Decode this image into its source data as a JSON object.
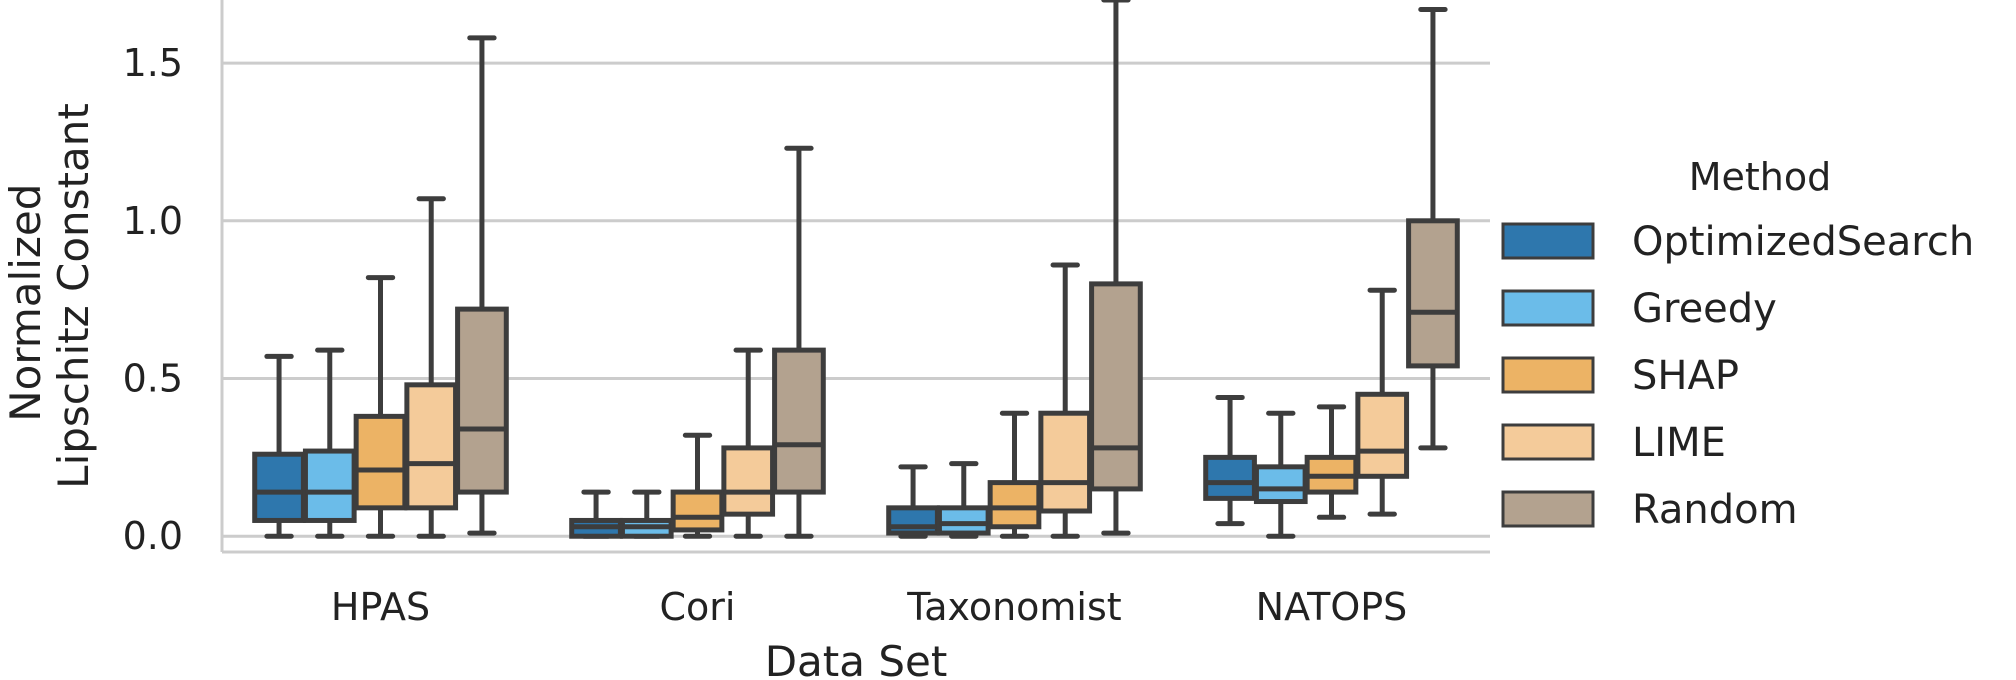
{
  "chart_data": {
    "type": "boxplot",
    "xlabel": "Data Set",
    "ylabel": [
      "Normalized",
      "Lipschitz Constant"
    ],
    "ylim": [
      -0.05,
      1.7
    ],
    "yticks": [
      0.0,
      0.5,
      1.0,
      1.5
    ],
    "ytick_labels": [
      "0.0",
      "0.5",
      "1.0",
      "1.5"
    ],
    "grid": "horizontal",
    "categories": [
      "HPAS",
      "Cori",
      "Taxonomist",
      "NATOPS"
    ],
    "legend": {
      "title": "Method",
      "placement": "right"
    },
    "series": [
      {
        "name": "OptimizedSearch",
        "color": "#2e77ad",
        "boxes": [
          {
            "whislo": 0.0,
            "q1": 0.05,
            "med": 0.14,
            "q3": 0.26,
            "whishi": 0.57
          },
          {
            "whislo": 0.0,
            "q1": 0.0,
            "med": 0.03,
            "q3": 0.05,
            "whishi": 0.14
          },
          {
            "whislo": 0.0,
            "q1": 0.01,
            "med": 0.03,
            "q3": 0.09,
            "whishi": 0.22
          },
          {
            "whislo": 0.04,
            "q1": 0.12,
            "med": 0.17,
            "q3": 0.25,
            "whishi": 0.44
          }
        ]
      },
      {
        "name": "Greedy",
        "color": "#6bbce9",
        "boxes": [
          {
            "whislo": 0.0,
            "q1": 0.05,
            "med": 0.14,
            "q3": 0.27,
            "whishi": 0.59
          },
          {
            "whislo": 0.0,
            "q1": 0.0,
            "med": 0.03,
            "q3": 0.05,
            "whishi": 0.14
          },
          {
            "whislo": 0.0,
            "q1": 0.01,
            "med": 0.04,
            "q3": 0.09,
            "whishi": 0.23
          },
          {
            "whislo": 0.0,
            "q1": 0.11,
            "med": 0.15,
            "q3": 0.22,
            "whishi": 0.39
          }
        ]
      },
      {
        "name": "SHAP",
        "color": "#ecb365",
        "boxes": [
          {
            "whislo": 0.0,
            "q1": 0.09,
            "med": 0.21,
            "q3": 0.38,
            "whishi": 0.82
          },
          {
            "whislo": 0.0,
            "q1": 0.02,
            "med": 0.06,
            "q3": 0.14,
            "whishi": 0.32
          },
          {
            "whislo": 0.0,
            "q1": 0.03,
            "med": 0.09,
            "q3": 0.17,
            "whishi": 0.39
          },
          {
            "whislo": 0.06,
            "q1": 0.14,
            "med": 0.19,
            "q3": 0.25,
            "whishi": 0.41
          }
        ]
      },
      {
        "name": "LIME",
        "color": "#f4cb9a",
        "boxes": [
          {
            "whislo": 0.0,
            "q1": 0.09,
            "med": 0.23,
            "q3": 0.48,
            "whishi": 1.07
          },
          {
            "whislo": 0.0,
            "q1": 0.07,
            "med": 0.14,
            "q3": 0.28,
            "whishi": 0.59
          },
          {
            "whislo": 0.0,
            "q1": 0.08,
            "med": 0.17,
            "q3": 0.39,
            "whishi": 0.86
          },
          {
            "whislo": 0.07,
            "q1": 0.19,
            "med": 0.27,
            "q3": 0.45,
            "whishi": 0.78
          }
        ]
      },
      {
        "name": "Random",
        "color": "#b3a28f",
        "boxes": [
          {
            "whislo": 0.01,
            "q1": 0.14,
            "med": 0.34,
            "q3": 0.72,
            "whishi": 1.58
          },
          {
            "whislo": 0.0,
            "q1": 0.14,
            "med": 0.29,
            "q3": 0.59,
            "whishi": 1.23
          },
          {
            "whislo": 0.01,
            "q1": 0.15,
            "med": 0.28,
            "q3": 0.8,
            "whishi": 1.7
          },
          {
            "whislo": 0.28,
            "q1": 0.54,
            "med": 0.71,
            "q3": 1.0,
            "whishi": 1.67
          }
        ]
      }
    ]
  }
}
